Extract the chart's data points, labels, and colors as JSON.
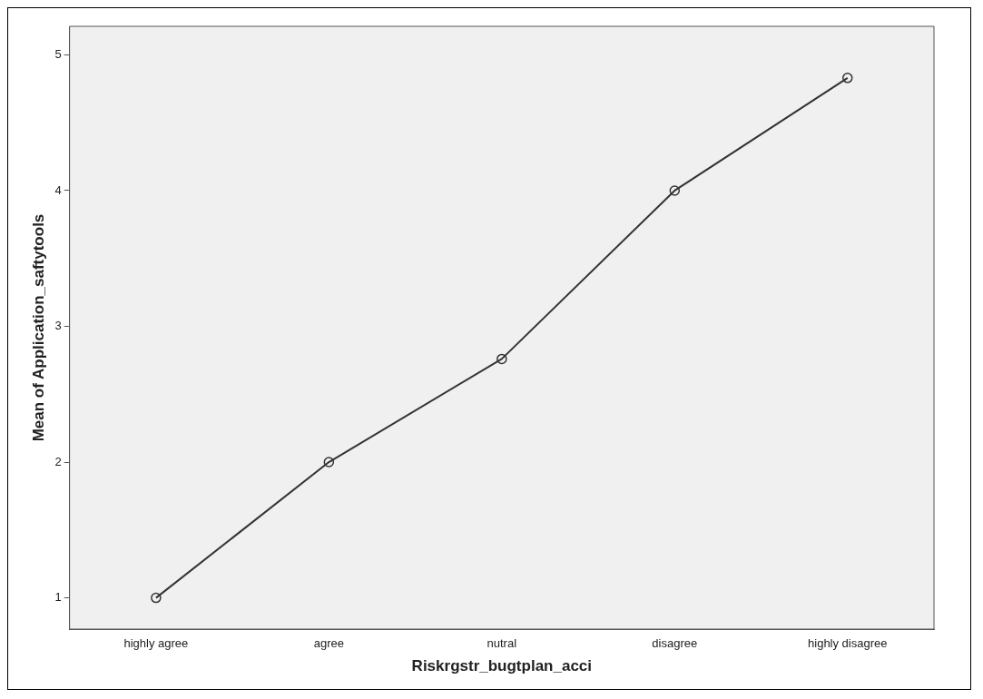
{
  "chart_data": {
    "type": "line",
    "xlabel": "Riskrgstr_bugtplan_acci",
    "ylabel": "Mean of Application_saftytools",
    "categories": [
      "highly agree",
      "agree",
      "nutral",
      "disagree",
      "highly disagree"
    ],
    "series": [
      {
        "color": "#333333",
        "values": [
          1,
          2,
          2.76,
          4,
          4.83
        ]
      }
    ],
    "ylim": [
      0.77,
      5.21
    ],
    "yticks": [
      1,
      2,
      3,
      4,
      5
    ],
    "grid": false,
    "legend": false,
    "marker": "circle",
    "line_style": "solid"
  }
}
